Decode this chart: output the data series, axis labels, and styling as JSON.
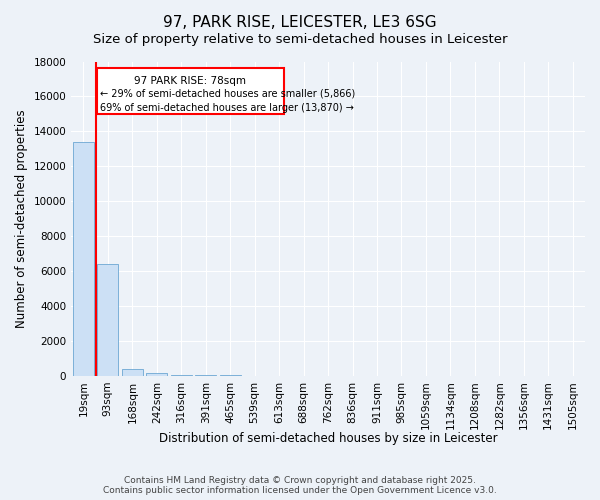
{
  "title": "97, PARK RISE, LEICESTER, LE3 6SG",
  "subtitle": "Size of property relative to semi-detached houses in Leicester",
  "xlabel": "Distribution of semi-detached houses by size in Leicester",
  "ylabel": "Number of semi-detached properties",
  "annotation_line1": "97 PARK RISE: 78sqm",
  "annotation_line2": "← 29% of semi-detached houses are smaller (5,866)",
  "annotation_line3": "69% of semi-detached houses are larger (13,870) →",
  "bin_labels": [
    "19sqm",
    "93sqm",
    "168sqm",
    "242sqm",
    "316sqm",
    "391sqm",
    "465sqm",
    "539sqm",
    "613sqm",
    "688sqm",
    "762sqm",
    "836sqm",
    "911sqm",
    "985sqm",
    "1059sqm",
    "1134sqm",
    "1208sqm",
    "1282sqm",
    "1356sqm",
    "1431sqm",
    "1505sqm"
  ],
  "bar_values": [
    13400,
    6400,
    400,
    150,
    50,
    20,
    10,
    5,
    3,
    2,
    1,
    1,
    1,
    0,
    0,
    0,
    0,
    0,
    0,
    0,
    0
  ],
  "bar_color": "#cce0f5",
  "bar_edge_color": "#5599cc",
  "red_line_x": 0.5,
  "ylim": [
    0,
    18000
  ],
  "yticks": [
    0,
    2000,
    4000,
    6000,
    8000,
    10000,
    12000,
    14000,
    16000,
    18000
  ],
  "footer1": "Contains HM Land Registry data © Crown copyright and database right 2025.",
  "footer2": "Contains public sector information licensed under the Open Government Licence v3.0.",
  "bg_color": "#edf2f8",
  "grid_color": "#ffffff",
  "title_fontsize": 11,
  "subtitle_fontsize": 9.5,
  "axis_label_fontsize": 8.5,
  "tick_fontsize": 7.5
}
